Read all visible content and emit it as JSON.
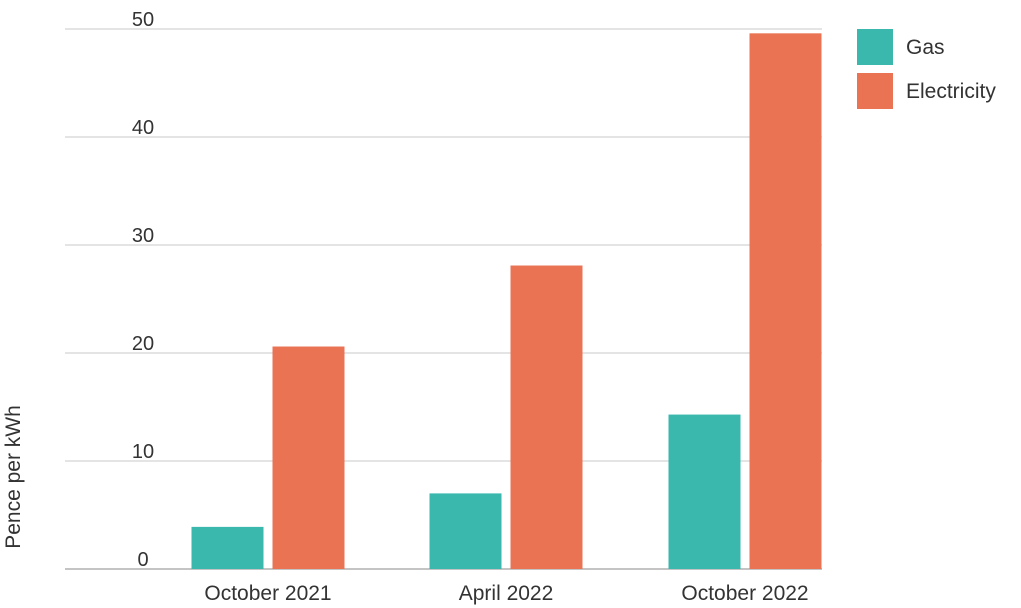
{
  "chart_data": {
    "type": "bar",
    "title": "",
    "xlabel": "",
    "ylabel": "Pence per kWh",
    "ylim": [
      0,
      50
    ],
    "yticks": [
      0,
      10,
      20,
      30,
      40,
      50
    ],
    "grid": true,
    "legend_position": "top-right",
    "categories": [
      "October 2021",
      "April 2022",
      "October 2022"
    ],
    "series": [
      {
        "name": "Gas",
        "color": "#3ab8ae",
        "values": [
          3.9,
          7.0,
          14.3
        ]
      },
      {
        "name": "Electricity",
        "color": "#ea7354",
        "values": [
          20.6,
          28.1,
          49.6
        ]
      }
    ]
  }
}
